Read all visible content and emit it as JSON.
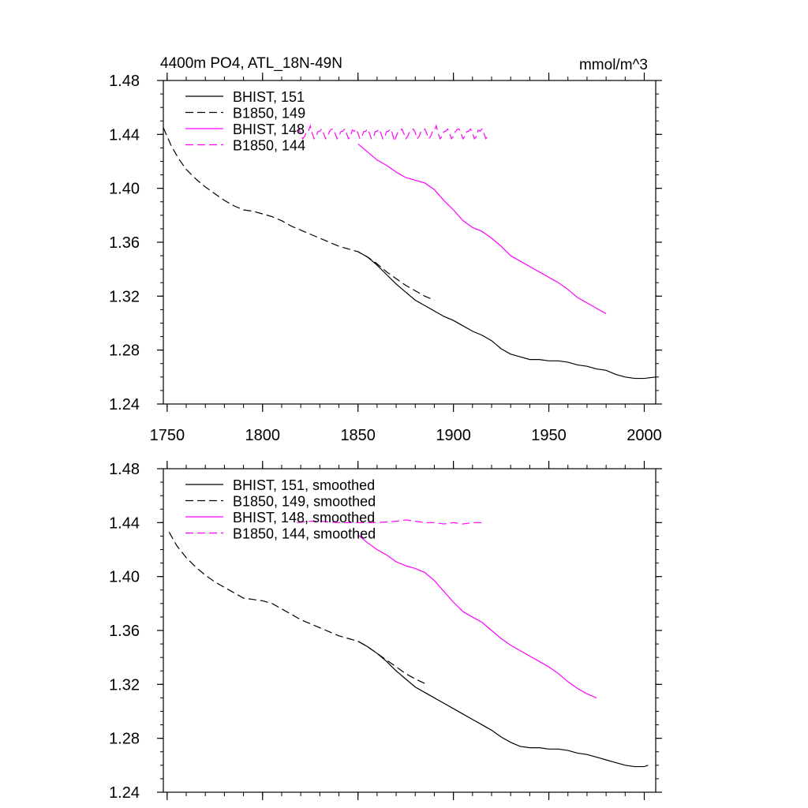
{
  "chart_data": [
    {
      "type": "line",
      "title_left": "4400m PO4, ATL_18N-49N",
      "title_right": "mmol/m^3",
      "xlabel": "",
      "ylabel": "",
      "xlim": [
        1748,
        2006
      ],
      "ylim": [
        1.24,
        1.48
      ],
      "xticks": [
        1750,
        1800,
        1850,
        1900,
        1950,
        2000
      ],
      "yticks": [
        1.24,
        1.28,
        1.32,
        1.36,
        1.4,
        1.44,
        1.48
      ],
      "ytick_labels": [
        "1.24",
        "1.28",
        "1.32",
        "1.36",
        "1.40",
        "1.44",
        "1.48"
      ],
      "show_xtick_labels": true,
      "grid": false,
      "legend_position": "top-left",
      "series": [
        {
          "name": "BHIST, 151",
          "color": "#000000",
          "dash": "solid",
          "points": [
            [
              1850,
              1.353
            ],
            [
              1855,
              1.349
            ],
            [
              1860,
              1.343
            ],
            [
              1865,
              1.336
            ],
            [
              1870,
              1.329
            ],
            [
              1875,
              1.323
            ],
            [
              1880,
              1.317
            ],
            [
              1885,
              1.313
            ],
            [
              1890,
              1.309
            ],
            [
              1895,
              1.305
            ],
            [
              1900,
              1.302
            ],
            [
              1905,
              1.298
            ],
            [
              1910,
              1.294
            ],
            [
              1915,
              1.291
            ],
            [
              1920,
              1.287
            ],
            [
              1925,
              1.281
            ],
            [
              1930,
              1.277
            ],
            [
              1935,
              1.275
            ],
            [
              1940,
              1.273
            ],
            [
              1945,
              1.273
            ],
            [
              1950,
              1.272
            ],
            [
              1955,
              1.272
            ],
            [
              1960,
              1.271
            ],
            [
              1965,
              1.269
            ],
            [
              1970,
              1.268
            ],
            [
              1975,
              1.266
            ],
            [
              1980,
              1.265
            ],
            [
              1985,
              1.262
            ],
            [
              1990,
              1.26
            ],
            [
              1995,
              1.259
            ],
            [
              2000,
              1.259
            ],
            [
              2006,
              1.26
            ]
          ]
        },
        {
          "name": "B1850, 149",
          "color": "#000000",
          "dash": "dashed",
          "points": [
            [
              1748,
              1.445
            ],
            [
              1752,
              1.432
            ],
            [
              1756,
              1.422
            ],
            [
              1760,
              1.414
            ],
            [
              1765,
              1.407
            ],
            [
              1770,
              1.401
            ],
            [
              1775,
              1.396
            ],
            [
              1780,
              1.391
            ],
            [
              1785,
              1.387
            ],
            [
              1790,
              1.384
            ],
            [
              1795,
              1.383
            ],
            [
              1800,
              1.381
            ],
            [
              1805,
              1.379
            ],
            [
              1810,
              1.376
            ],
            [
              1815,
              1.372
            ],
            [
              1820,
              1.369
            ],
            [
              1825,
              1.366
            ],
            [
              1830,
              1.363
            ],
            [
              1835,
              1.36
            ],
            [
              1840,
              1.357
            ],
            [
              1845,
              1.355
            ],
            [
              1850,
              1.353
            ],
            [
              1855,
              1.349
            ],
            [
              1860,
              1.344
            ],
            [
              1865,
              1.338
            ],
            [
              1870,
              1.333
            ],
            [
              1875,
              1.328
            ],
            [
              1880,
              1.324
            ],
            [
              1885,
              1.32
            ],
            [
              1890,
              1.317
            ]
          ]
        },
        {
          "name": "BHIST, 148",
          "color": "#ff00ff",
          "dash": "solid",
          "points": [
            [
              1850,
              1.433
            ],
            [
              1855,
              1.427
            ],
            [
              1860,
              1.421
            ],
            [
              1865,
              1.417
            ],
            [
              1870,
              1.412
            ],
            [
              1875,
              1.408
            ],
            [
              1880,
              1.406
            ],
            [
              1885,
              1.404
            ],
            [
              1890,
              1.399
            ],
            [
              1895,
              1.391
            ],
            [
              1900,
              1.384
            ],
            [
              1905,
              1.376
            ],
            [
              1910,
              1.371
            ],
            [
              1915,
              1.368
            ],
            [
              1920,
              1.363
            ],
            [
              1925,
              1.357
            ],
            [
              1930,
              1.35
            ],
            [
              1935,
              1.346
            ],
            [
              1940,
              1.342
            ],
            [
              1945,
              1.338
            ],
            [
              1950,
              1.334
            ],
            [
              1955,
              1.33
            ],
            [
              1960,
              1.325
            ],
            [
              1965,
              1.319
            ],
            [
              1970,
              1.315
            ],
            [
              1975,
              1.311
            ],
            [
              1980,
              1.307
            ]
          ]
        },
        {
          "name": "B1850, 144",
          "color": "#ff00ff",
          "dash": "dashed",
          "zigzag": true,
          "x_range": [
            1818,
            1918
          ],
          "center": 1.44,
          "amplitude": 0.004
        }
      ]
    },
    {
      "type": "line",
      "title_left": "",
      "title_right": "",
      "xlabel": "",
      "ylabel": "",
      "xlim": [
        1748,
        2006
      ],
      "ylim": [
        1.24,
        1.48
      ],
      "xticks": [
        1750,
        1800,
        1850,
        1900,
        1950,
        2000
      ],
      "yticks": [
        1.24,
        1.28,
        1.32,
        1.36,
        1.4,
        1.44,
        1.48
      ],
      "ytick_labels": [
        "1.24",
        "1.28",
        "1.32",
        "1.36",
        "1.40",
        "1.44",
        "1.48"
      ],
      "show_xtick_labels": false,
      "grid": false,
      "legend_position": "top-left",
      "series": [
        {
          "name": "BHIST, 151, smoothed",
          "color": "#000000",
          "dash": "solid",
          "points": [
            [
              1850,
              1.352
            ],
            [
              1855,
              1.348
            ],
            [
              1860,
              1.343
            ],
            [
              1865,
              1.337
            ],
            [
              1870,
              1.33
            ],
            [
              1875,
              1.324
            ],
            [
              1880,
              1.318
            ],
            [
              1885,
              1.314
            ],
            [
              1890,
              1.31
            ],
            [
              1895,
              1.306
            ],
            [
              1900,
              1.302
            ],
            [
              1905,
              1.298
            ],
            [
              1910,
              1.294
            ],
            [
              1915,
              1.29
            ],
            [
              1920,
              1.286
            ],
            [
              1925,
              1.281
            ],
            [
              1930,
              1.277
            ],
            [
              1935,
              1.274
            ],
            [
              1940,
              1.273
            ],
            [
              1945,
              1.273
            ],
            [
              1950,
              1.272
            ],
            [
              1955,
              1.272
            ],
            [
              1960,
              1.271
            ],
            [
              1965,
              1.269
            ],
            [
              1970,
              1.268
            ],
            [
              1975,
              1.266
            ],
            [
              1980,
              1.264
            ],
            [
              1985,
              1.262
            ],
            [
              1990,
              1.26
            ],
            [
              1995,
              1.259
            ],
            [
              2000,
              1.259
            ],
            [
              2002,
              1.26
            ]
          ]
        },
        {
          "name": "B1850, 149, smoothed",
          "color": "#000000",
          "dash": "dashed",
          "points": [
            [
              1751,
              1.433
            ],
            [
              1755,
              1.423
            ],
            [
              1760,
              1.414
            ],
            [
              1765,
              1.407
            ],
            [
              1770,
              1.401
            ],
            [
              1775,
              1.396
            ],
            [
              1780,
              1.392
            ],
            [
              1785,
              1.388
            ],
            [
              1790,
              1.384
            ],
            [
              1795,
              1.383
            ],
            [
              1800,
              1.382
            ],
            [
              1805,
              1.38
            ],
            [
              1810,
              1.376
            ],
            [
              1815,
              1.372
            ],
            [
              1820,
              1.368
            ],
            [
              1825,
              1.365
            ],
            [
              1830,
              1.362
            ],
            [
              1835,
              1.359
            ],
            [
              1840,
              1.356
            ],
            [
              1845,
              1.354
            ],
            [
              1850,
              1.352
            ],
            [
              1855,
              1.348
            ],
            [
              1860,
              1.343
            ],
            [
              1865,
              1.338
            ],
            [
              1870,
              1.333
            ],
            [
              1875,
              1.328
            ],
            [
              1880,
              1.324
            ],
            [
              1886,
              1.32
            ]
          ]
        },
        {
          "name": "BHIST, 148, smoothed",
          "color": "#ff00ff",
          "dash": "solid",
          "points": [
            [
              1850,
              1.431
            ],
            [
              1855,
              1.425
            ],
            [
              1860,
              1.42
            ],
            [
              1865,
              1.416
            ],
            [
              1870,
              1.411
            ],
            [
              1875,
              1.408
            ],
            [
              1880,
              1.406
            ],
            [
              1885,
              1.403
            ],
            [
              1890,
              1.397
            ],
            [
              1895,
              1.389
            ],
            [
              1900,
              1.381
            ],
            [
              1905,
              1.374
            ],
            [
              1910,
              1.37
            ],
            [
              1915,
              1.366
            ],
            [
              1920,
              1.36
            ],
            [
              1925,
              1.354
            ],
            [
              1930,
              1.349
            ],
            [
              1935,
              1.345
            ],
            [
              1940,
              1.341
            ],
            [
              1945,
              1.337
            ],
            [
              1950,
              1.333
            ],
            [
              1955,
              1.328
            ],
            [
              1960,
              1.322
            ],
            [
              1965,
              1.317
            ],
            [
              1970,
              1.313
            ],
            [
              1975,
              1.31
            ]
          ]
        },
        {
          "name": "B1850, 144, smoothed",
          "color": "#ff00ff",
          "dash": "dashed",
          "points": [
            [
              1818,
              1.44
            ],
            [
              1825,
              1.441
            ],
            [
              1830,
              1.441
            ],
            [
              1840,
              1.44
            ],
            [
              1850,
              1.44
            ],
            [
              1860,
              1.44
            ],
            [
              1870,
              1.441
            ],
            [
              1875,
              1.442
            ],
            [
              1880,
              1.441
            ],
            [
              1885,
              1.44
            ],
            [
              1890,
              1.44
            ],
            [
              1895,
              1.439
            ],
            [
              1900,
              1.44
            ],
            [
              1905,
              1.439
            ],
            [
              1910,
              1.44
            ],
            [
              1915,
              1.44
            ]
          ]
        }
      ]
    }
  ]
}
